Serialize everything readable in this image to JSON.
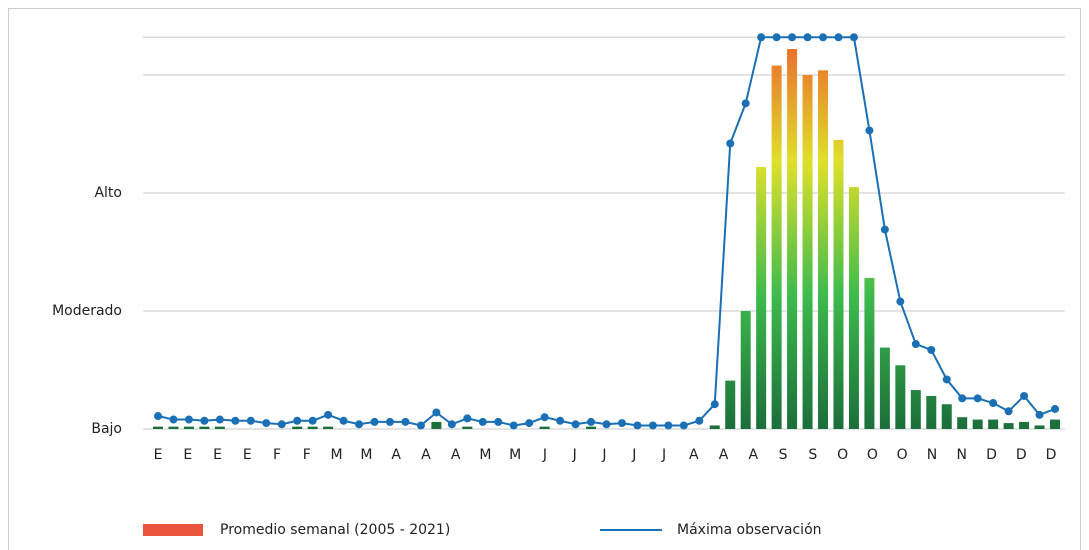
{
  "chart_data": {
    "type": "bar_line",
    "ylim": [
      0,
      34
    ],
    "yticks": [
      {
        "value": 0,
        "label": "Bajo"
      },
      {
        "value": 10,
        "label": "Moderado"
      },
      {
        "value": 20,
        "label": "Alto"
      }
    ],
    "ygrid": [
      0,
      10,
      20,
      30,
      33.2
    ],
    "grid": true,
    "xlabels": [
      "E",
      "E",
      "E",
      "E",
      "F",
      "F",
      "M",
      "M",
      "A",
      "A",
      "A",
      "M",
      "M",
      "J",
      "J",
      "J",
      "J",
      "J",
      "A",
      "A",
      "A",
      "S",
      "S",
      "O",
      "O",
      "O",
      "N",
      "N",
      "D",
      "D",
      "D"
    ],
    "legend": "bottom",
    "series": [
      {
        "name": "Promedio semanal (2005 - 2021)",
        "type": "bar",
        "color": "#e8533a",
        "gradient": [
          "#1b6e3a",
          "#3dbb4c",
          "#dfe02a",
          "#ee5a2c"
        ],
        "values": [
          0.2,
          0.2,
          0.2,
          0.2,
          0.2,
          0,
          0,
          0,
          0,
          0.2,
          0.2,
          0.2,
          0,
          0,
          0,
          0,
          0,
          0,
          0.6,
          0,
          0.2,
          0,
          0,
          0,
          0,
          0.2,
          0,
          0,
          0.2,
          0,
          0,
          0,
          0,
          0,
          0,
          0,
          0.3,
          4.1,
          10,
          22.2,
          30.8,
          32.2,
          30,
          30.4,
          24.5,
          20.5,
          12.8,
          6.9,
          5.4,
          3.3,
          2.8,
          2.1,
          1.0,
          0.8,
          0.8,
          0.5,
          0.6,
          0.3,
          0.8
        ]
      },
      {
        "name": "Máxima observación",
        "type": "line",
        "color": "#1a6fb5",
        "values": [
          1.1,
          0.8,
          0.8,
          0.7,
          0.8,
          0.7,
          0.7,
          0.5,
          0.4,
          0.7,
          0.7,
          1.2,
          0.7,
          0.4,
          0.6,
          0.6,
          0.6,
          0.3,
          1.4,
          0.4,
          0.9,
          0.6,
          0.6,
          0.3,
          0.5,
          1.0,
          0.7,
          0.4,
          0.6,
          0.4,
          0.5,
          0.3,
          0.3,
          0.3,
          0.3,
          0.7,
          2.1,
          24.2,
          27.6,
          33.2,
          33.2,
          33.2,
          33.2,
          33.2,
          33.2,
          33.2,
          25.3,
          16.9,
          10.8,
          7.2,
          6.7,
          4.2,
          2.6,
          2.6,
          2.2,
          1.5,
          2.8,
          1.2,
          1.7
        ]
      }
    ]
  }
}
